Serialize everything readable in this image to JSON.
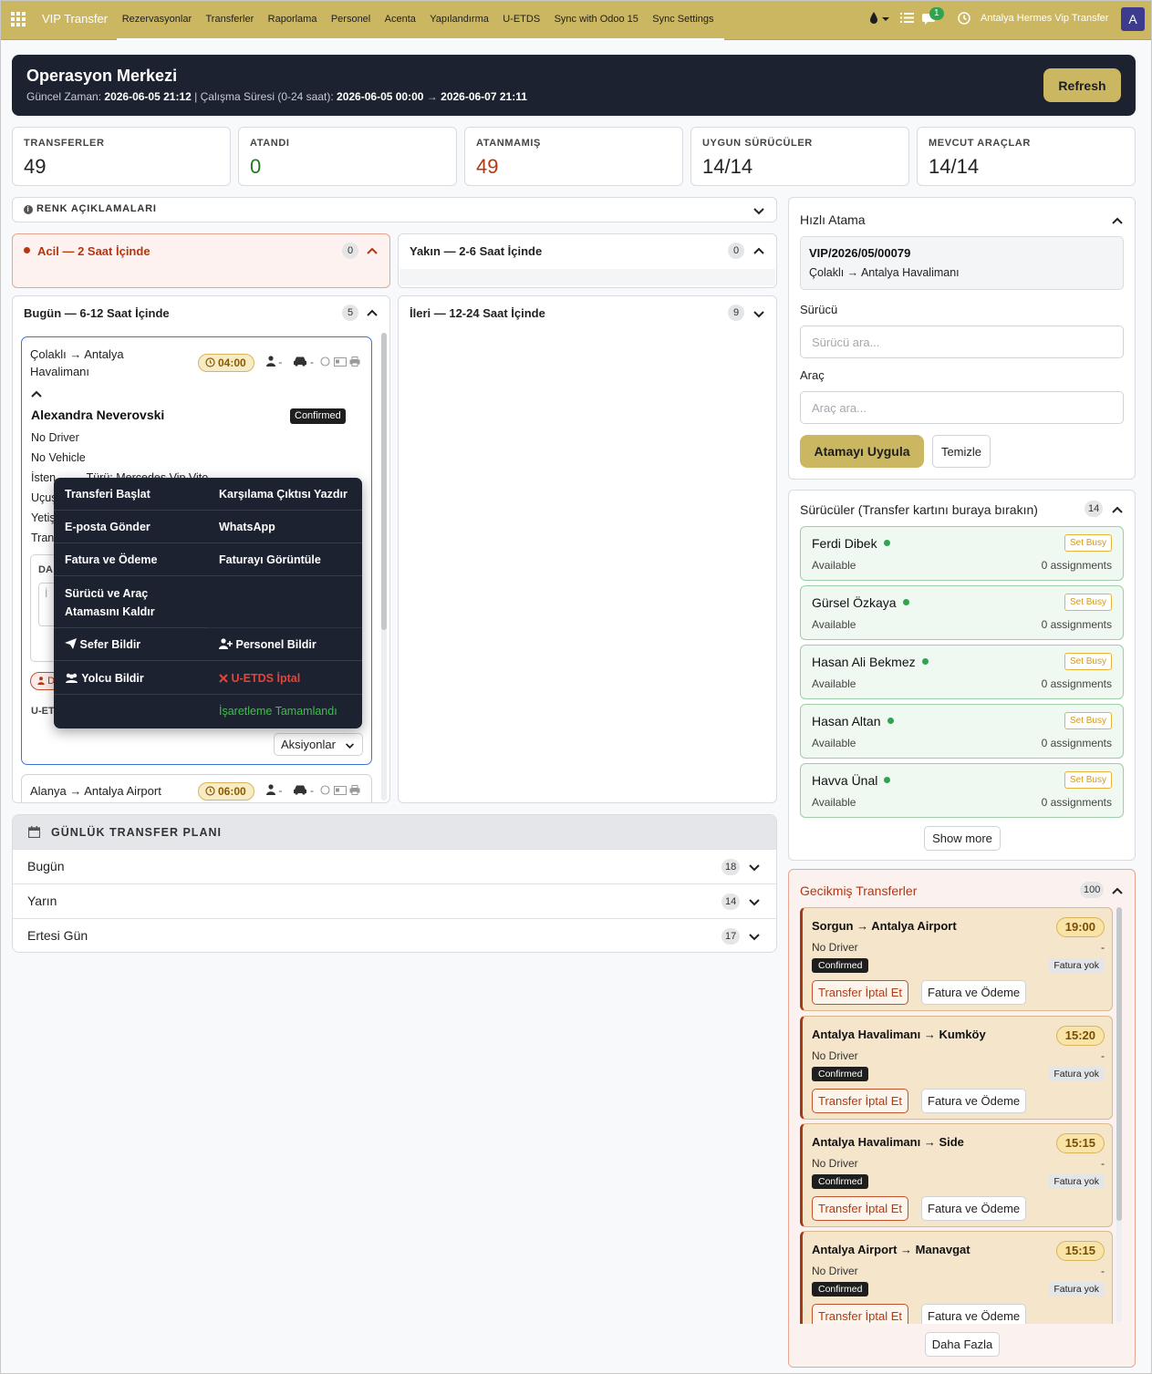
{
  "navbar": {
    "brand": "VIP Transfer",
    "menu": [
      "Rezervasyonlar",
      "Transferler",
      "Raporlama",
      "Personel",
      "Acenta",
      "Yapılandırma",
      "U-ETDS",
      "Sync with Odoo 15",
      "Sync Settings"
    ],
    "message_count": "1",
    "company": "Antalya Hermes Vip Transfer",
    "avatar_letter": "A",
    "icons": [
      "apps-grid-icon",
      "drop-icon",
      "list-icon",
      "chat-icon",
      "clock-icon"
    ]
  },
  "header": {
    "title": "Operasyon Merkezi",
    "current_time_label": "Güncel Zaman:",
    "current_time": "2026-06-05 21:12",
    "separator": "|",
    "work_period_label": "Çalışma Süresi (0-24 saat):",
    "work_period_start": "2026-06-05 00:00",
    "arrow": "→",
    "work_period_end": "2026-06-07 21:11",
    "refresh_label": "Refresh"
  },
  "kpis": [
    {
      "label": "TRANSFERLER",
      "value": "49",
      "color": "#222222"
    },
    {
      "label": "ATANDI",
      "value": "0",
      "color": "#1f7a1f"
    },
    {
      "label": "ATANMAMIŞ",
      "value": "49",
      "color": "#b5360f"
    },
    {
      "label": "UYGUN SÜRÜCÜLER",
      "value": "14/14",
      "color": "#222222"
    },
    {
      "label": "MEVCUT ARAÇLAR",
      "value": "14/14",
      "color": "#222222"
    }
  ],
  "legend": {
    "title": "RENK AÇIKLAMALARI"
  },
  "groups": {
    "urgent": {
      "title": "Acil — 2 Saat İçinde",
      "count": "0"
    },
    "near": {
      "title": "Yakın — 2-6 Saat İçinde",
      "count": "0"
    },
    "today": {
      "title": "Bugün — 6-12 Saat İçinde",
      "count": "5"
    },
    "later": {
      "title": "İleri — 12-24 Saat İçinde",
      "count": "9"
    }
  },
  "transfer_cards": [
    {
      "route_line1": "Çolaklı → Antalya",
      "route_line2": "Havalimanı",
      "time": "04:00",
      "driver_short": "-",
      "vehicle_short": "-",
      "passenger": "Alexandra Neverovski",
      "status": "Confirmed",
      "driver": "No Driver",
      "vehicle": "No Vehicle",
      "partial_rows": [
        "İsten",
        "Uçuş",
        "Yetiş",
        "Tran"
      ],
      "partial_requested_tail": "Türü: Mercedes Vip Vito",
      "notes_label": "DA",
      "notes_placeholder": "İ",
      "badge_partial": "D",
      "uetds_partial": "U-ET",
      "actions_label": "Aksiyonlar"
    },
    {
      "route": "Alanya → Antalya Airport",
      "time": "06:00",
      "driver_short": "-",
      "vehicle_short": "-"
    }
  ],
  "actions_menu": {
    "start_transfer": "Transferi Başlat",
    "print_welcome": "Karşılama Çıktısı Yazdır",
    "send_email": "E-posta Gönder",
    "whatsapp": "WhatsApp",
    "invoice_payment": "Fatura ve Ödeme",
    "view_invoice": "Faturayı Görüntüle",
    "remove_assignment_line1": "Sürücü ve Araç",
    "remove_assignment_line2": "Atamasını Kaldır",
    "notify_trip": "Sefer Bildir",
    "notify_staff": "Personel Bildir",
    "notify_passenger": "Yolcu Bildir",
    "uetds_cancel": "U-ETDS İptal",
    "mark_done": "İşaretleme Tamamlandı"
  },
  "daily_plan": {
    "title": "GÜNLÜK TRANSFER PLANI",
    "rows": [
      {
        "label": "Bugün",
        "count": "18"
      },
      {
        "label": "Yarın",
        "count": "14"
      },
      {
        "label": "Ertesi Gün",
        "count": "17"
      }
    ]
  },
  "quick_assign": {
    "title": "Hızlı Atama",
    "selected_ref": "VIP/2026/05/00079",
    "selected_route": "Çolaklı → Antalya Havalimanı",
    "driver_label": "Sürücü",
    "driver_placeholder": "Sürücü ara...",
    "vehicle_label": "Araç",
    "vehicle_placeholder": "Araç ara...",
    "apply_label": "Atamayı Uygula",
    "clear_label": "Temizle"
  },
  "drivers": {
    "title": "Sürücüler (Transfer kartını buraya bırakın)",
    "count": "14",
    "set_busy_label": "Set Busy",
    "items": [
      {
        "name": "Ferdi Dibek",
        "status": "Available",
        "assignments": "0 assignments"
      },
      {
        "name": "Gürsel Özkaya",
        "status": "Available",
        "assignments": "0 assignments"
      },
      {
        "name": "Hasan Ali Bekmez",
        "status": "Available",
        "assignments": "0 assignments"
      },
      {
        "name": "Hasan Altan",
        "status": "Available",
        "assignments": "0 assignments"
      },
      {
        "name": "Havva Ünal",
        "status": "Available",
        "assignments": "0 assignments"
      }
    ],
    "show_more": "Show more"
  },
  "late_transfers": {
    "title": "Gecikmiş Transferler",
    "count": "100",
    "cancel_label": "Transfer İptal Et",
    "invoice_label": "Fatura ve Ödeme",
    "items": [
      {
        "route": "Sorgun → Antalya Airport",
        "time": "19:00",
        "driver": "No Driver",
        "dash": "-",
        "status": "Confirmed",
        "invoice": "Fatura yok"
      },
      {
        "route": "Antalya Havalimanı → Kumköy",
        "time": "15:20",
        "driver": "No Driver",
        "dash": "-",
        "status": "Confirmed",
        "invoice": "Fatura yok"
      },
      {
        "route": "Antalya Havalimanı → Side",
        "time": "15:15",
        "driver": "No Driver",
        "dash": "-",
        "status": "Confirmed",
        "invoice": "Fatura yok"
      },
      {
        "route": "Antalya Airport → Manavgat",
        "time": "15:15",
        "driver": "No Driver",
        "dash": "-",
        "status": "Confirmed",
        "invoice": "Fatura yok"
      }
    ],
    "more_label": "Daha Fazla"
  },
  "colors": {
    "brand_gold": "#cbb761",
    "dark_panel": "#1c2230",
    "urgent_red": "#b5360f",
    "available_green": "#2ea44f",
    "active_blue": "#3b73d6"
  }
}
